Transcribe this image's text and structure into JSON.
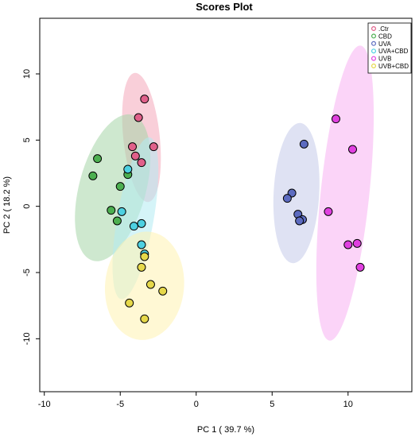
{
  "chart_data": {
    "type": "scatter",
    "title": "Scores Plot",
    "xlabel": "PC 1 ( 39.7 %)",
    "ylabel": "PC 2 ( 18.2 %)",
    "xlim": [
      -10.3,
      14.2
    ],
    "ylim": [
      -14.0,
      14.2
    ],
    "x_ticks": [
      -10,
      -5,
      0,
      5,
      10
    ],
    "y_ticks": [
      -10,
      -5,
      0,
      5,
      10
    ],
    "x_tick_labels": [
      "-10",
      "-5",
      "0",
      "5",
      "10"
    ],
    "y_tick_labels": [
      "-10",
      "-5",
      "0",
      "5",
      "10"
    ],
    "grid": false,
    "legend_position": "top-right",
    "series": [
      {
        "name": ".Ctr",
        "color": "#e0608a",
        "ellipse_fill": "#f4a7b9",
        "points": [
          [
            -3.4,
            8.1
          ],
          [
            -3.8,
            6.7
          ],
          [
            -4.2,
            4.5
          ],
          [
            -2.8,
            4.5
          ],
          [
            -4.0,
            3.8
          ],
          [
            -3.6,
            3.3
          ]
        ],
        "ellipse": {
          "cx": -3.6,
          "cy": 5.2,
          "rx": 1.2,
          "ry": 4.9,
          "angle": -6
        }
      },
      {
        "name": "CBD",
        "color": "#4caf50",
        "ellipse_fill": "#a5d6a7",
        "points": [
          [
            -6.5,
            3.6
          ],
          [
            -6.8,
            2.3
          ],
          [
            -5.0,
            1.5
          ],
          [
            -4.5,
            2.4
          ],
          [
            -5.6,
            -0.3
          ],
          [
            -5.2,
            -1.1
          ]
        ],
        "ellipse": {
          "cx": -5.5,
          "cy": 1.4,
          "rx": 2.2,
          "ry": 5.7,
          "angle": 15
        }
      },
      {
        "name": "UVA",
        "color": "#5c6bc0",
        "ellipse_fill": "#c5cae9",
        "points": [
          [
            7.1,
            4.7
          ],
          [
            6.3,
            1.0
          ],
          [
            6.0,
            0.6
          ],
          [
            6.7,
            -0.6
          ],
          [
            7.0,
            -1.0
          ],
          [
            6.8,
            -1.1
          ]
        ],
        "ellipse": {
          "cx": 6.6,
          "cy": 1.0,
          "rx": 1.5,
          "ry": 5.3,
          "angle": 3
        }
      },
      {
        "name": "UVA+CBD",
        "color": "#4dd0e1",
        "ellipse_fill": "#b2ebf2",
        "points": [
          [
            -4.5,
            2.8
          ],
          [
            -4.9,
            -0.4
          ],
          [
            -4.1,
            -1.5
          ],
          [
            -3.6,
            -1.3
          ],
          [
            -3.6,
            -2.9
          ],
          [
            -3.4,
            -3.6
          ]
        ],
        "ellipse": {
          "cx": -4.0,
          "cy": -0.9,
          "rx": 1.2,
          "ry": 6.2,
          "angle": 10
        }
      },
      {
        "name": "UVB",
        "color": "#e040e0",
        "ellipse_fill": "#f7b0f3",
        "points": [
          [
            9.2,
            6.6
          ],
          [
            10.3,
            4.3
          ],
          [
            8.7,
            -0.4
          ],
          [
            10.6,
            -2.8
          ],
          [
            10.0,
            -2.9
          ],
          [
            10.8,
            -4.6
          ]
        ],
        "ellipse": {
          "cx": 9.8,
          "cy": 1.0,
          "rx": 1.6,
          "ry": 11.2,
          "angle": 6
        }
      },
      {
        "name": "UVB+CBD",
        "color": "#e6d84a",
        "ellipse_fill": "#fff3b0",
        "points": [
          [
            -3.4,
            -3.8
          ],
          [
            -3.6,
            -4.6
          ],
          [
            -3.0,
            -5.9
          ],
          [
            -2.2,
            -6.4
          ],
          [
            -4.4,
            -7.3
          ],
          [
            -3.4,
            -8.5
          ]
        ],
        "ellipse": {
          "cx": -3.4,
          "cy": -6.0,
          "rx": 2.6,
          "ry": 4.1,
          "angle": 5
        }
      }
    ]
  }
}
